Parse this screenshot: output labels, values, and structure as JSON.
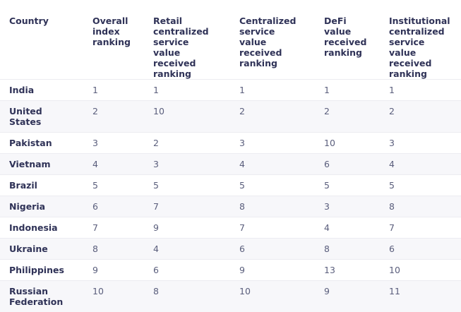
{
  "table": {
    "header": [
      "Country",
      "Overall index ranking",
      "Retail centralized service value received ranking",
      "Centralized service value received ranking",
      "DeFi value received ranking",
      "Institutional centralized service value received ranking"
    ],
    "rows": [
      [
        "India",
        1,
        1,
        1,
        1,
        1
      ],
      [
        "United States",
        2,
        10,
        2,
        2,
        2
      ],
      [
        "Pakistan",
        3,
        2,
        3,
        10,
        3
      ],
      [
        "Vietnam",
        4,
        3,
        4,
        6,
        4
      ],
      [
        "Brazil",
        5,
        5,
        5,
        5,
        5
      ],
      [
        "Nigeria",
        6,
        7,
        8,
        3,
        8
      ],
      [
        "Indonesia",
        7,
        9,
        7,
        4,
        7
      ],
      [
        "Ukraine",
        8,
        4,
        6,
        8,
        6
      ],
      [
        "Philippines",
        9,
        6,
        9,
        13,
        10
      ],
      [
        "Russian Federation",
        10,
        8,
        10,
        9,
        11
      ]
    ]
  }
}
